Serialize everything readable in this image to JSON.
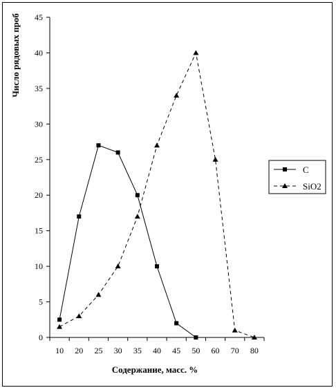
{
  "chart_data": {
    "type": "line",
    "xlabel": "Содержание, масс. %",
    "ylabel": "Число рядовых проб",
    "x_ticks": [
      10,
      20,
      25,
      30,
      35,
      40,
      45,
      50,
      60,
      70,
      80
    ],
    "ylim": [
      0,
      45
    ],
    "y_ticks": [
      0,
      5,
      10,
      15,
      20,
      25,
      30,
      35,
      40,
      45
    ],
    "grid": false,
    "legend_position": "right",
    "series": [
      {
        "name": "C",
        "style": "solid",
        "marker": "square",
        "color": "#000000",
        "points": [
          [
            10,
            2.5
          ],
          [
            20,
            17
          ],
          [
            25,
            27
          ],
          [
            30,
            26
          ],
          [
            35,
            20
          ],
          [
            40,
            10
          ],
          [
            45,
            2
          ],
          [
            50,
            0
          ]
        ]
      },
      {
        "name": "SiO2",
        "style": "dashed",
        "marker": "triangle",
        "color": "#000000",
        "points": [
          [
            10,
            1.5
          ],
          [
            20,
            3
          ],
          [
            25,
            6
          ],
          [
            30,
            10
          ],
          [
            35,
            17
          ],
          [
            40,
            27
          ],
          [
            45,
            34
          ],
          [
            50,
            40
          ],
          [
            60,
            25
          ],
          [
            70,
            1
          ],
          [
            80,
            0
          ]
        ]
      }
    ]
  }
}
